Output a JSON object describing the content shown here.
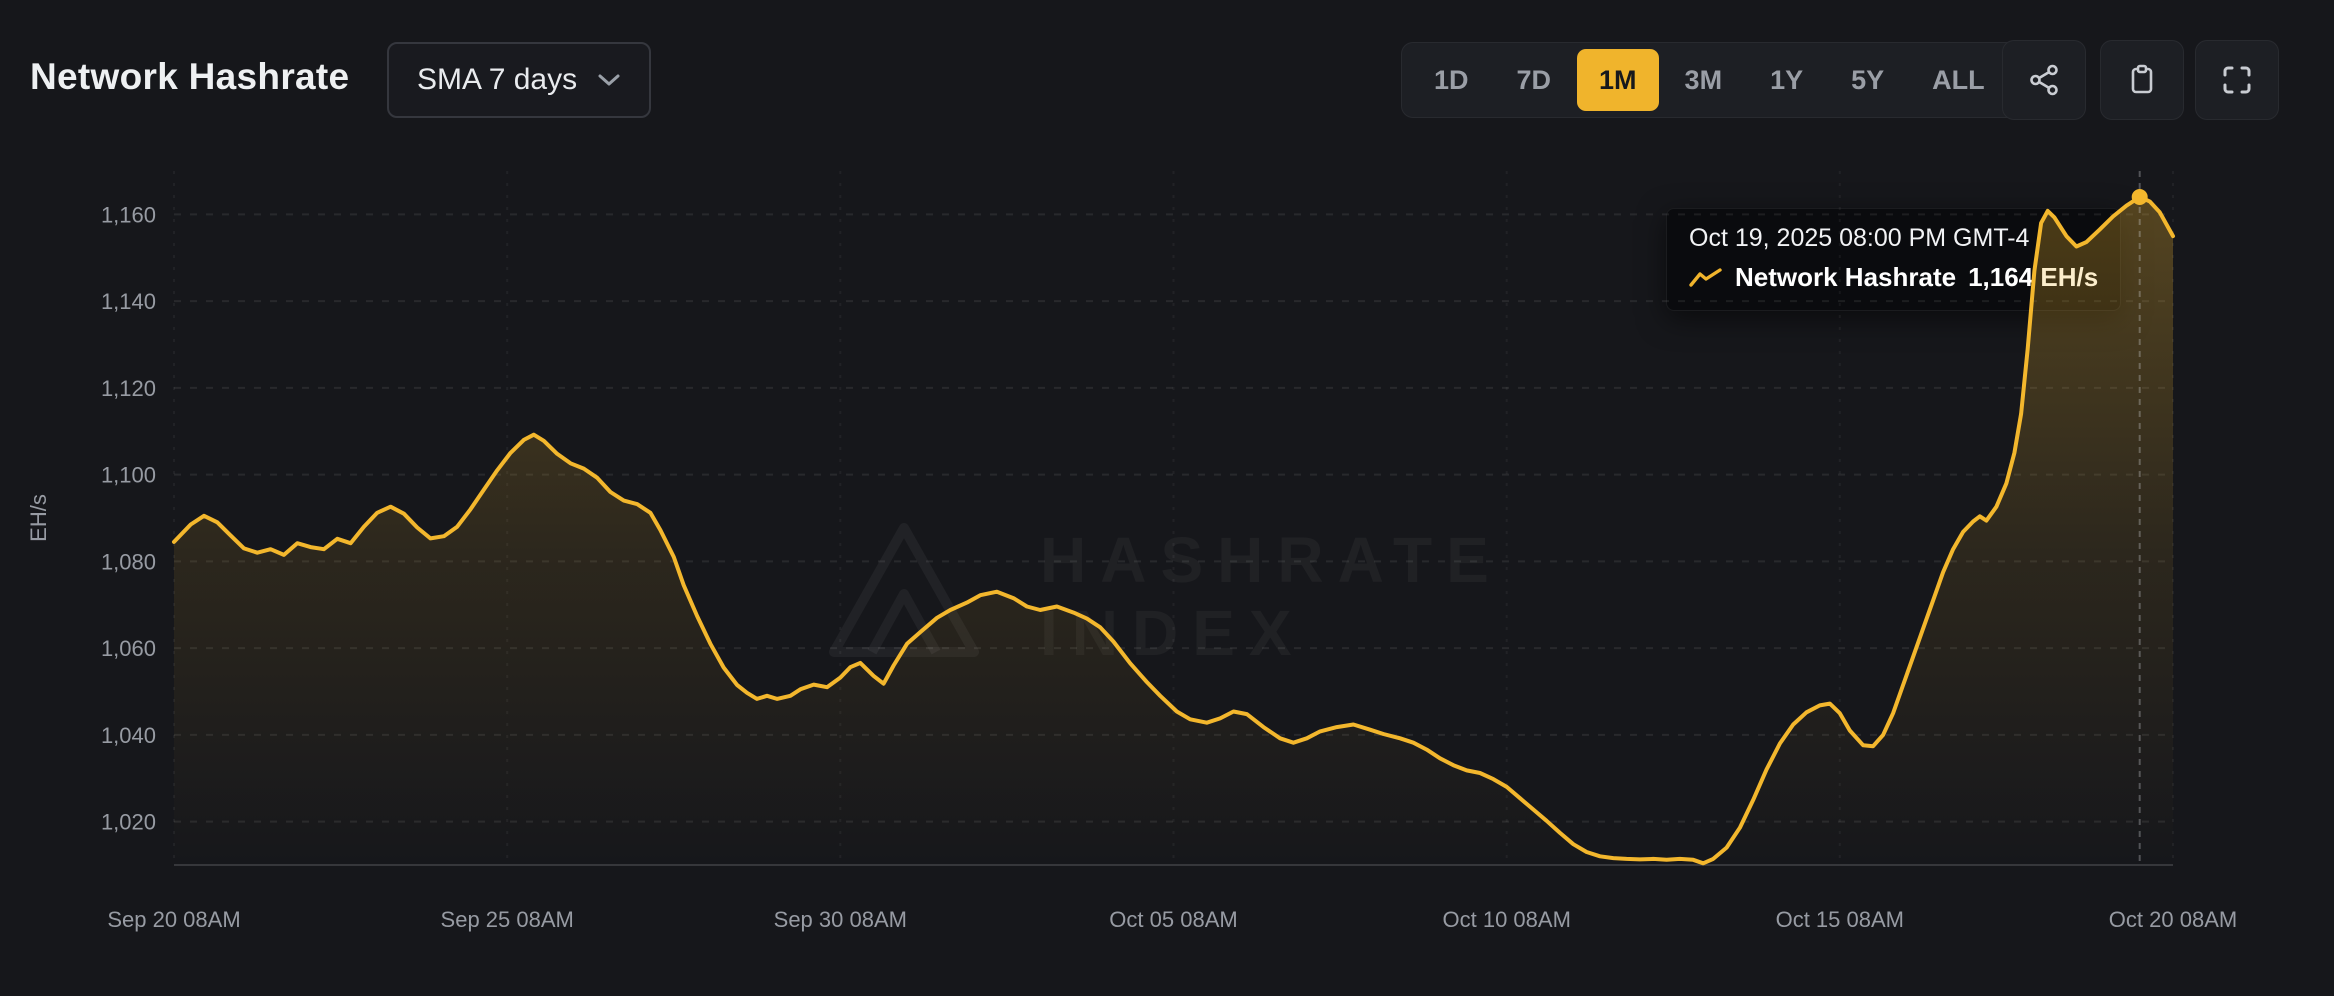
{
  "page": {
    "background": "#16171b",
    "accent": "#f0b42c"
  },
  "header": {
    "title": "Network Hashrate",
    "sma_dropdown": {
      "label": "SMA 7 days",
      "expanded": false
    },
    "range_buttons": [
      {
        "label": "1D",
        "selected": false
      },
      {
        "label": "7D",
        "selected": false
      },
      {
        "label": "1M",
        "selected": true
      },
      {
        "label": "3M",
        "selected": false
      },
      {
        "label": "1Y",
        "selected": false
      },
      {
        "label": "5Y",
        "selected": false
      },
      {
        "label": "ALL",
        "selected": false
      }
    ],
    "icons": [
      "share-icon",
      "clipboard-icon",
      "fullscreen-icon"
    ]
  },
  "tooltip": {
    "date": "Oct 19, 2025 08:00 PM GMT-4",
    "series_name": "Network Hashrate",
    "value": "1,164 EH/s"
  },
  "watermark": {
    "line1": "HASHRATE",
    "line2": "INDEX"
  },
  "chart_data": {
    "type": "area",
    "title": "Network Hashrate",
    "ylabel": "EH/s",
    "unit": "EH/s",
    "xlim_days": [
      0,
      30
    ],
    "ylim": [
      1010,
      1170
    ],
    "grid": "dashed",
    "x_ticks": [
      {
        "d": 0,
        "label": "Sep 20 08AM"
      },
      {
        "d": 5,
        "label": "Sep 25 08AM"
      },
      {
        "d": 10,
        "label": "Sep 30 08AM"
      },
      {
        "d": 15,
        "label": "Oct 05 08AM"
      },
      {
        "d": 20,
        "label": "Oct 10 08AM"
      },
      {
        "d": 25,
        "label": "Oct 15 08AM"
      },
      {
        "d": 30,
        "label": "Oct 20 08AM"
      }
    ],
    "y_ticks": [
      {
        "v": 1020,
        "label": "1,020"
      },
      {
        "v": 1040,
        "label": "1,040"
      },
      {
        "v": 1060,
        "label": "1,060"
      },
      {
        "v": 1080,
        "label": "1,080"
      },
      {
        "v": 1100,
        "label": "1,100"
      },
      {
        "v": 1120,
        "label": "1,120"
      },
      {
        "v": 1140,
        "label": "1,140"
      },
      {
        "v": 1160,
        "label": "1,160"
      }
    ],
    "series": [
      {
        "name": "Network Hashrate",
        "color": "#f3b72d",
        "points": [
          [
            0,
            1084.5
          ],
          [
            0.25,
            1088.5
          ],
          [
            0.45,
            1090.5
          ],
          [
            0.65,
            1089
          ],
          [
            0.85,
            1086
          ],
          [
            1.05,
            1083
          ],
          [
            1.25,
            1082
          ],
          [
            1.45,
            1082.8
          ],
          [
            1.65,
            1081.5
          ],
          [
            1.85,
            1084.2
          ],
          [
            2.05,
            1083.3
          ],
          [
            2.25,
            1082.8
          ],
          [
            2.45,
            1085.2
          ],
          [
            2.65,
            1084.2
          ],
          [
            2.85,
            1088
          ],
          [
            3.05,
            1091.2
          ],
          [
            3.25,
            1092.6
          ],
          [
            3.45,
            1091
          ],
          [
            3.65,
            1087.8
          ],
          [
            3.85,
            1085.3
          ],
          [
            4.05,
            1085.8
          ],
          [
            4.25,
            1088
          ],
          [
            4.45,
            1092
          ],
          [
            4.65,
            1096.5
          ],
          [
            4.85,
            1101
          ],
          [
            5.05,
            1105
          ],
          [
            5.25,
            1108
          ],
          [
            5.4,
            1109.2
          ],
          [
            5.55,
            1107.8
          ],
          [
            5.75,
            1104.8
          ],
          [
            5.95,
            1102.6
          ],
          [
            6.15,
            1101.4
          ],
          [
            6.35,
            1099.3
          ],
          [
            6.55,
            1096
          ],
          [
            6.75,
            1094
          ],
          [
            6.95,
            1093.2
          ],
          [
            7.15,
            1091.2
          ],
          [
            7.3,
            1087.2
          ],
          [
            7.5,
            1081
          ],
          [
            7.65,
            1074.5
          ],
          [
            7.85,
            1067.4
          ],
          [
            8.05,
            1061
          ],
          [
            8.25,
            1055.5
          ],
          [
            8.45,
            1051.5
          ],
          [
            8.6,
            1049.7
          ],
          [
            8.75,
            1048.3
          ],
          [
            8.9,
            1049
          ],
          [
            9.05,
            1048.3
          ],
          [
            9.25,
            1049
          ],
          [
            9.4,
            1050.5
          ],
          [
            9.6,
            1051.6
          ],
          [
            9.8,
            1051
          ],
          [
            10,
            1053.2
          ],
          [
            10.15,
            1055.6
          ],
          [
            10.3,
            1056.6
          ],
          [
            10.5,
            1053.6
          ],
          [
            10.65,
            1051.8
          ],
          [
            10.8,
            1056
          ],
          [
            11,
            1061
          ],
          [
            11.2,
            1063.7
          ],
          [
            11.45,
            1067
          ],
          [
            11.65,
            1068.8
          ],
          [
            11.9,
            1070.5
          ],
          [
            12.1,
            1072.2
          ],
          [
            12.35,
            1073
          ],
          [
            12.6,
            1071.5
          ],
          [
            12.8,
            1069.6
          ],
          [
            13,
            1068.8
          ],
          [
            13.25,
            1069.6
          ],
          [
            13.5,
            1068.2
          ],
          [
            13.7,
            1066.8
          ],
          [
            13.9,
            1064.8
          ],
          [
            14.1,
            1061.5
          ],
          [
            14.35,
            1056.5
          ],
          [
            14.6,
            1052.2
          ],
          [
            14.8,
            1049
          ],
          [
            15.05,
            1045.4
          ],
          [
            15.25,
            1043.6
          ],
          [
            15.5,
            1042.8
          ],
          [
            15.7,
            1043.8
          ],
          [
            15.9,
            1045.4
          ],
          [
            16.1,
            1044.8
          ],
          [
            16.35,
            1041.8
          ],
          [
            16.6,
            1039.2
          ],
          [
            16.8,
            1038.2
          ],
          [
            17,
            1039.2
          ],
          [
            17.2,
            1040.8
          ],
          [
            17.45,
            1041.8
          ],
          [
            17.7,
            1042.4
          ],
          [
            17.95,
            1041.2
          ],
          [
            18.15,
            1040.2
          ],
          [
            18.4,
            1039.2
          ],
          [
            18.6,
            1038.2
          ],
          [
            18.8,
            1036.6
          ],
          [
            19,
            1034.6
          ],
          [
            19.2,
            1033
          ],
          [
            19.4,
            1031.8
          ],
          [
            19.6,
            1031.2
          ],
          [
            19.8,
            1029.8
          ],
          [
            20,
            1028
          ],
          [
            20.2,
            1025.4
          ],
          [
            20.4,
            1022.8
          ],
          [
            20.6,
            1020.2
          ],
          [
            20.8,
            1017.4
          ],
          [
            21,
            1014.8
          ],
          [
            21.2,
            1013
          ],
          [
            21.4,
            1012
          ],
          [
            21.6,
            1011.6
          ],
          [
            21.8,
            1011.4
          ],
          [
            22,
            1011.3
          ],
          [
            22.2,
            1011.4
          ],
          [
            22.4,
            1011.2
          ],
          [
            22.6,
            1011.4
          ],
          [
            22.8,
            1011.2
          ],
          [
            22.95,
            1010.4
          ],
          [
            23.1,
            1011.4
          ],
          [
            23.3,
            1014
          ],
          [
            23.5,
            1018.6
          ],
          [
            23.7,
            1025
          ],
          [
            23.9,
            1032
          ],
          [
            24.1,
            1038
          ],
          [
            24.3,
            1042.4
          ],
          [
            24.5,
            1045.2
          ],
          [
            24.7,
            1046.8
          ],
          [
            24.85,
            1047.2
          ],
          [
            25,
            1045
          ],
          [
            25.15,
            1041
          ],
          [
            25.35,
            1037.6
          ],
          [
            25.5,
            1037.4
          ],
          [
            25.65,
            1040
          ],
          [
            25.8,
            1045
          ],
          [
            25.95,
            1051.5
          ],
          [
            26.1,
            1058
          ],
          [
            26.25,
            1064.5
          ],
          [
            26.4,
            1071
          ],
          [
            26.55,
            1077.5
          ],
          [
            26.7,
            1082.8
          ],
          [
            26.85,
            1086.8
          ],
          [
            27,
            1089.2
          ],
          [
            27.1,
            1090.4
          ],
          [
            27.2,
            1089.4
          ],
          [
            27.35,
            1092.6
          ],
          [
            27.5,
            1098
          ],
          [
            27.62,
            1105
          ],
          [
            27.72,
            1114
          ],
          [
            27.82,
            1129
          ],
          [
            27.92,
            1147
          ],
          [
            28.02,
            1158
          ],
          [
            28.12,
            1160.8
          ],
          [
            28.22,
            1159.3
          ],
          [
            28.4,
            1155
          ],
          [
            28.55,
            1152.6
          ],
          [
            28.7,
            1153.6
          ],
          [
            28.9,
            1156.5
          ],
          [
            29.1,
            1159.5
          ],
          [
            29.3,
            1162
          ],
          [
            29.5,
            1164
          ],
          [
            29.65,
            1163
          ],
          [
            29.8,
            1160.5
          ],
          [
            30,
            1155
          ]
        ]
      }
    ],
    "marker": {
      "day": 29.5,
      "value": 1164,
      "date": "Oct 19, 2025 08:00 PM GMT-4",
      "display_value": "1,164 EH/s"
    }
  }
}
